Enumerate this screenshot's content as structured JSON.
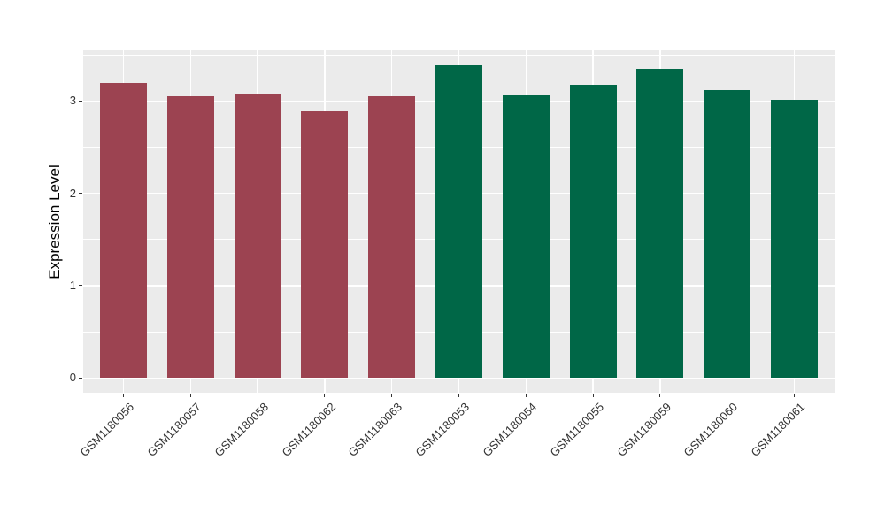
{
  "style": {
    "figure_background": "#ffffff",
    "panel_background": "#ebebeb",
    "grid_color": "#ffffff",
    "axis_text_color": "#333333",
    "tick_mark_color": "#333333",
    "bar_color_left_group": "#9c4351",
    "bar_color_right_group": "#006747"
  },
  "chart_data": {
    "type": "bar",
    "title": "",
    "xlabel": "",
    "ylabel": "Expression Level",
    "ylim": [
      0,
      3.55
    ],
    "yticks": [
      0,
      1,
      2,
      3
    ],
    "ytick_labels": [
      "0",
      "1",
      "2",
      "3"
    ],
    "ytick_minor": [
      0.5,
      1.5,
      2.5,
      3.5
    ],
    "grid": "on",
    "legend": "none",
    "x_label_rotation_deg": 45,
    "categories": [
      "GSM1180056",
      "GSM1180057",
      "GSM1180058",
      "GSM1180062",
      "GSM1180063",
      "GSM1180053",
      "GSM1180054",
      "GSM1180055",
      "GSM1180059",
      "GSM1180060",
      "GSM1180061"
    ],
    "values": [
      3.19,
      3.05,
      3.08,
      2.9,
      3.06,
      3.4,
      3.07,
      3.18,
      3.35,
      3.12,
      3.01
    ],
    "bar_colors": [
      "#9c4351",
      "#9c4351",
      "#9c4351",
      "#9c4351",
      "#9c4351",
      "#006747",
      "#006747",
      "#006747",
      "#006747",
      "#006747",
      "#006747"
    ]
  }
}
